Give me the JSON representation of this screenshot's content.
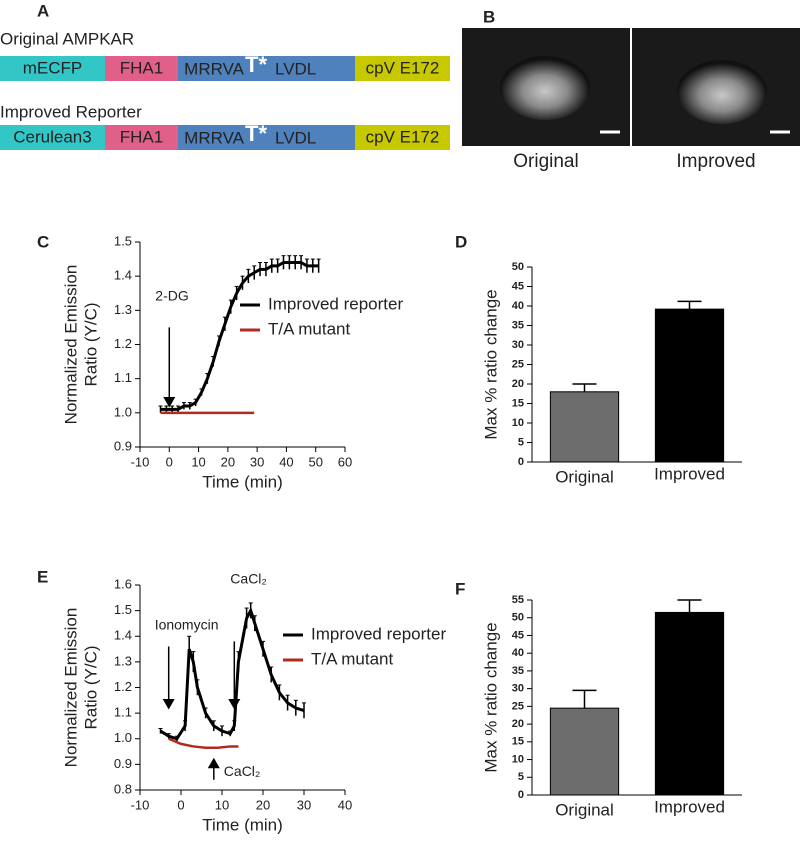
{
  "panel_a": {
    "letter": "A",
    "constructs": [
      {
        "name": "Original AMPKAR",
        "segments": [
          "mECFP",
          "FHA1",
          [
            "MRRVA",
            "T*",
            "LVDL"
          ],
          "cpV E172"
        ]
      },
      {
        "name": "Improved Reporter",
        "segments": [
          "Cerulean3",
          "FHA1",
          [
            "MRRVA",
            "T*",
            "LVDL"
          ],
          "cpV E172"
        ]
      }
    ]
  },
  "panel_b": {
    "letter": "B",
    "labels": [
      "Original",
      "Improved"
    ]
  },
  "chart_data": [
    {
      "type": "line",
      "panel": "C",
      "x_label": "Time (min)",
      "y_label": [
        "Normalized Emission",
        "Ratio (Y/C)"
      ],
      "xlim": [
        -10,
        60
      ],
      "xticks": [
        -10,
        0,
        10,
        20,
        30,
        40,
        50,
        60
      ],
      "ylim": [
        0.9,
        1.5
      ],
      "yticks": [
        0.9,
        {
          "value": 1,
          "label": "1.0"
        },
        1.1,
        1.2,
        1.3,
        1.4,
        1.5
      ],
      "annotations": [
        "2-DG"
      ],
      "series": [
        {
          "name": "Improved reporter",
          "color": "#000000",
          "x": [
            -3,
            -1,
            1,
            3,
            5,
            7,
            9,
            11,
            13,
            15,
            17,
            19,
            21,
            23,
            25,
            27,
            29,
            31,
            33,
            35,
            37,
            39,
            41,
            43,
            45,
            47,
            49,
            51
          ],
          "values": [
            1.01,
            1.01,
            1.01,
            1.01,
            1.02,
            1.02,
            1.03,
            1.06,
            1.1,
            1.15,
            1.21,
            1.26,
            1.31,
            1.35,
            1.38,
            1.4,
            1.41,
            1.42,
            1.42,
            1.43,
            1.43,
            1.44,
            1.44,
            1.44,
            1.44,
            1.43,
            1.43,
            1.43
          ],
          "errors": [
            0.01,
            0.01,
            0.01,
            0.01,
            0.01,
            0.01,
            0.01,
            0.01,
            0.015,
            0.015,
            0.015,
            0.02,
            0.02,
            0.02,
            0.02,
            0.02,
            0.02,
            0.02,
            0.02,
            0.02,
            0.02,
            0.02,
            0.02,
            0.02,
            0.02,
            0.02,
            0.02,
            0.02
          ]
        },
        {
          "name": "T/A mutant",
          "color": "#b22a1e",
          "x": [
            -3,
            1,
            5,
            9,
            13,
            17,
            21,
            25,
            29
          ],
          "values": [
            1.0,
            1.0,
            1.0,
            1.0,
            1.0,
            1.0,
            1.0,
            1.0,
            1.0
          ]
        }
      ]
    },
    {
      "type": "bar",
      "panel": "D",
      "y_label": "Max % ratio change",
      "categories": [
        "Original",
        "Improved"
      ],
      "values": [
        18,
        39.2
      ],
      "errors": [
        2,
        2
      ],
      "colors": [
        "#6d6d6d",
        "#000000"
      ],
      "ylim": [
        0,
        50
      ],
      "yticks": [
        0,
        5,
        10,
        15,
        20,
        25,
        30,
        35,
        40,
        45,
        50
      ]
    },
    {
      "type": "line",
      "panel": "E",
      "x_label": "Time (min)",
      "y_label": [
        "Normalized Emission",
        "Ratio (Y/C)"
      ],
      "xlim": [
        -10,
        40
      ],
      "xticks": [
        -10,
        0,
        10,
        20,
        30,
        40
      ],
      "ylim": [
        0.8,
        1.6
      ],
      "yticks": [
        0.8,
        0.9,
        {
          "value": 1,
          "label": "1.0"
        },
        1.1,
        1.2,
        1.3,
        1.4,
        1.5,
        1.6
      ],
      "annotations": [
        "Ionomycin",
        "CaCl₂",
        "CaCl₂"
      ],
      "series": [
        {
          "name": "Improved reporter",
          "color": "#000000",
          "x": [
            -5,
            -3,
            -1,
            1,
            2,
            3,
            4,
            6,
            8,
            10,
            12,
            13,
            14,
            16,
            17,
            18,
            20,
            22,
            24,
            26,
            28,
            30
          ],
          "values": [
            1.03,
            1.01,
            1.0,
            1.05,
            1.35,
            1.3,
            1.2,
            1.1,
            1.05,
            1.03,
            1.02,
            1.05,
            1.3,
            1.47,
            1.5,
            1.45,
            1.35,
            1.25,
            1.18,
            1.14,
            1.12,
            1.11
          ],
          "errors": [
            0.01,
            0.01,
            0.01,
            0.02,
            0.05,
            0.04,
            0.03,
            0.02,
            0.02,
            0.02,
            0.01,
            0.02,
            0.04,
            0.04,
            0.03,
            0.03,
            0.03,
            0.03,
            0.03,
            0.03,
            0.03,
            0.03
          ]
        },
        {
          "name": "T/A mutant",
          "color": "#b22a1e",
          "x": [
            -3,
            0,
            3,
            6,
            9,
            12,
            14
          ],
          "values": [
            1.0,
            0.98,
            0.97,
            0.965,
            0.965,
            0.97,
            0.97
          ]
        }
      ]
    },
    {
      "type": "bar",
      "panel": "F",
      "y_label": "Max % ratio change",
      "categories": [
        "Original",
        "Improved"
      ],
      "values": [
        24.5,
        51.5
      ],
      "errors": [
        5,
        3.5
      ],
      "colors": [
        "#6d6d6d",
        "#000000"
      ],
      "ylim": [
        0,
        55
      ],
      "yticks": [
        0,
        5,
        10,
        15,
        20,
        25,
        30,
        35,
        40,
        45,
        50,
        55
      ]
    }
  ]
}
